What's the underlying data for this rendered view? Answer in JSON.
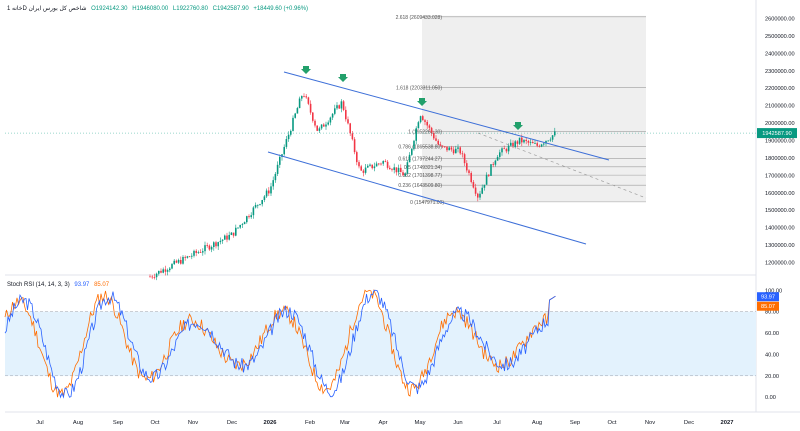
{
  "header": {
    "symbol": "خانه 1D شاخص کل بورس ایران",
    "ohlc": [
      "O1924142.30",
      "H1946080.00",
      "L1922760.80",
      "C1942587.90",
      "+18449.60 (+0.96%)"
    ]
  },
  "indicator": {
    "label": "Stoch RSI (14, 14, 3, 3)",
    "k_value": "93.97",
    "d_value": "85.07",
    "k_color": "#2962ff",
    "d_color": "#ff6d00"
  },
  "colors": {
    "up": "#089981",
    "down": "#f23645",
    "channel": "#3d6fd8",
    "arrow": "#22a06b",
    "fib_zone": "#ececec",
    "rsi_band": "#e3f2fd",
    "price_tag": "#2962ff"
  },
  "chart_data": [
    {
      "type": "candlestick",
      "x_axis": {
        "ticks": [
          "Jul",
          "Aug",
          "Sep",
          "Oct",
          "Nov",
          "Dec",
          "2026",
          "Feb",
          "Mar",
          "Apr",
          "May",
          "Jun",
          "Jul",
          "Aug",
          "Sep",
          "Oct",
          "Nov",
          "Dec",
          "2027"
        ]
      },
      "y_axis": {
        "ticks": [
          "2600000.00",
          "2500000.00",
          "2400000.00",
          "2300000.00",
          "2200000.00",
          "2100000.00",
          "2000000.00",
          "1900000.00",
          "1800000.00",
          "1700000.00",
          "1600000.00",
          "1500000.00",
          "1400000.00",
          "1300000.00",
          "1200000.00"
        ],
        "range": [
          1140000,
          2620000
        ]
      },
      "last_price_label": "1942587.90",
      "price_path_key_points": [
        {
          "month": "Jun",
          "value": 1120000
        },
        {
          "month": "Dec",
          "value": 1360000
        },
        {
          "month": "Jan",
          "value": 1620000
        },
        {
          "month": "Feb",
          "value": 2180000
        },
        {
          "month": "Mar",
          "value": 1780000
        },
        {
          "month": "Apr",
          "value": 1720000
        },
        {
          "month": "May",
          "value": 2050000
        },
        {
          "month": "Jun",
          "value": 1580000
        },
        {
          "month": "Jul",
          "value": 1880000
        },
        {
          "month": "Aug",
          "value": 1942588
        }
      ],
      "fibonacci": [
        {
          "label": "2.618 (2609433.028)",
          "value": 2609433
        },
        {
          "label": "1.618 (2203311.050)",
          "value": 2203311
        },
        {
          "label": "1 (1952261.30)",
          "value": 1952261
        },
        {
          "label": "0.786 (1865538.80)",
          "value": 1865539
        },
        {
          "label": "0.618 (1797244.27)",
          "value": 1797244
        },
        {
          "label": "0.5 (1749321.34)",
          "value": 1749321
        },
        {
          "label": "0.382 (1701398.77)",
          "value": 1701399
        },
        {
          "label": "0.236 (1643509.80)",
          "value": 1643510
        },
        {
          "label": "0 (1547971.00)",
          "value": 1547971
        }
      ],
      "annotations": [
        "descending channel (two parallel trend lines)",
        "4 green down-arrow markers at swing highs",
        "dashed projection line"
      ]
    },
    {
      "type": "line",
      "name": "Stoch RSI",
      "y_axis": {
        "ticks": [
          "100.00",
          "80.00",
          "60.00",
          "40.00",
          "20.00",
          "0.00"
        ],
        "range": [
          -12,
          104
        ]
      },
      "bands": [
        20,
        80
      ],
      "series": [
        {
          "name": "K",
          "last": 93.97
        },
        {
          "name": "D",
          "last": 85.07
        }
      ]
    }
  ]
}
